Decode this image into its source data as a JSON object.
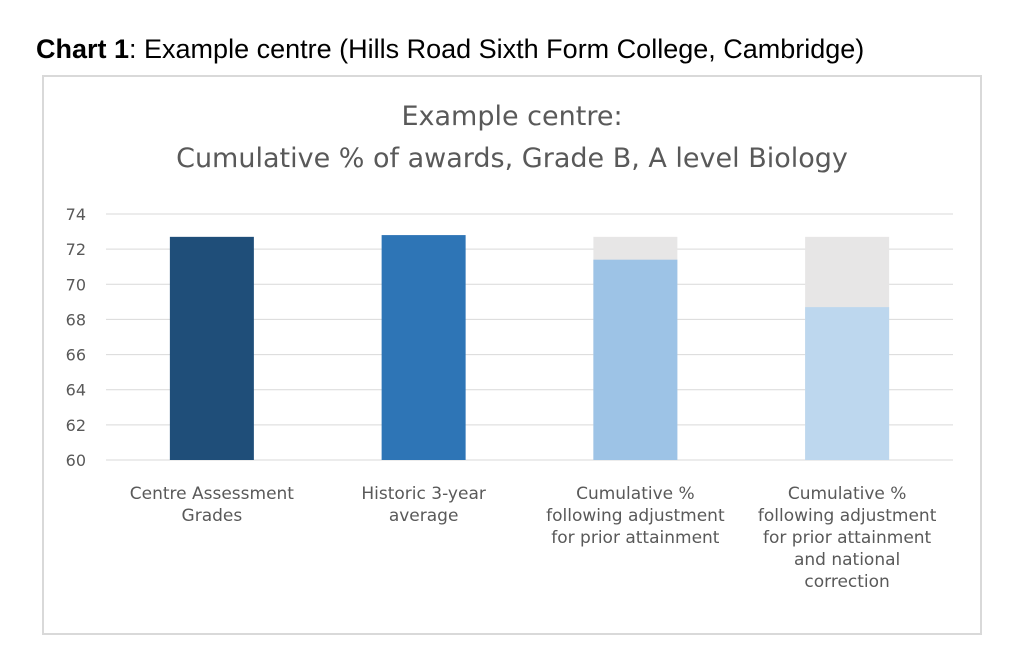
{
  "heading": {
    "bold": "Chart 1",
    "rest": ": Example centre (Hills Road Sixth Form College, Cambridge)"
  },
  "chart_data": {
    "type": "bar",
    "title": [
      "Example centre:",
      "Cumulative % of awards, Grade B, A level Biology"
    ],
    "xlabel": "",
    "ylabel": "",
    "ylim": [
      60,
      74
    ],
    "yticks": [
      60,
      62,
      64,
      66,
      68,
      70,
      72,
      74
    ],
    "grid": true,
    "legend": "none",
    "categories": [
      [
        "Centre Assessment",
        "Grades"
      ],
      [
        "Historic 3-year",
        "average"
      ],
      [
        "Cumulative %",
        "following adjustment",
        "for prior attainment"
      ],
      [
        "Cumulative %",
        "following adjustment",
        "for prior attainment",
        "and national",
        "correction"
      ]
    ],
    "bars": [
      {
        "value": 72.7,
        "background": null,
        "color": "#1f4e79"
      },
      {
        "value": 72.8,
        "background": null,
        "color": "#2e75b6"
      },
      {
        "value": 71.4,
        "background": 72.7,
        "color": "#9dc3e6"
      },
      {
        "value": 68.7,
        "background": 72.7,
        "color": "#bdd7ee"
      }
    ],
    "background_color": "#e7e6e6",
    "colors": {
      "grid": "#d9d9d9",
      "text": "#595959"
    }
  }
}
